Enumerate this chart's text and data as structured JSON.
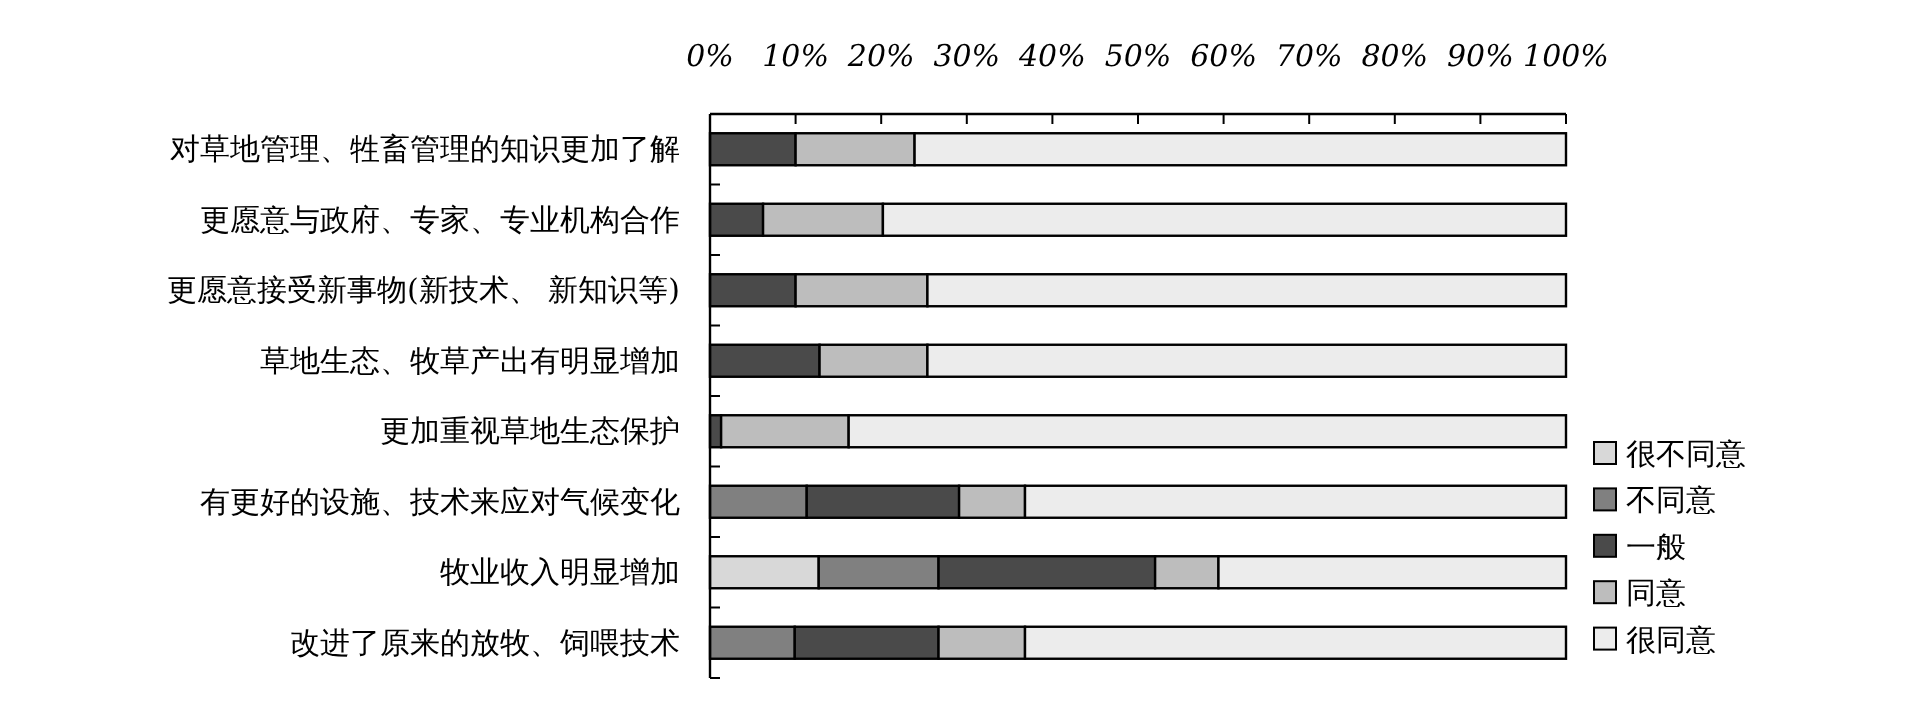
{
  "chart_data": {
    "type": "bar",
    "orientation": "horizontal",
    "stacked": true,
    "legend": "right",
    "grid": false,
    "categories": [
      "对草地管理、牲畜管理的知识更加了解",
      "更愿意与政府、专家、专业机构合作",
      "更愿意接受新事物(新技术、 新知识等)",
      "草地生态、牧草产出有明显增加",
      "更加重视草地生态保护",
      "有更好的设施、技术来应对气候变化",
      "牧业收入明显增加",
      "改进了原来的放牧、饲喂技术"
    ],
    "xlim": [
      0,
      100
    ],
    "xticks": [
      {
        "value": 0,
        "label": "0%"
      },
      {
        "value": 10,
        "label": "10%"
      },
      {
        "value": 20,
        "label": "20%"
      },
      {
        "value": 30,
        "label": "30%"
      },
      {
        "value": 40,
        "label": "40%"
      },
      {
        "value": 50,
        "label": "50%"
      },
      {
        "value": 60,
        "label": "60%"
      },
      {
        "value": 70,
        "label": "70%"
      },
      {
        "value": 80,
        "label": "80%"
      },
      {
        "value": 90,
        "label": "90%"
      },
      {
        "value": 100,
        "label": "100%"
      }
    ],
    "series": [
      {
        "name": "很不同意",
        "color": "#d8d8d8",
        "values": [
          0,
          0,
          0,
          0,
          0,
          0,
          12.7,
          0
        ]
      },
      {
        "name": "不同意",
        "color": "#808080",
        "values": [
          0,
          0,
          0,
          0,
          0,
          11.3,
          14.0,
          9.9
        ]
      },
      {
        "name": "一般",
        "color": "#4a4a4a",
        "values": [
          10.0,
          6.2,
          10.0,
          12.8,
          1.3,
          17.8,
          25.3,
          16.8
        ]
      },
      {
        "name": "同意",
        "color": "#bdbdbd",
        "values": [
          13.9,
          14.0,
          15.4,
          12.6,
          14.9,
          7.7,
          7.4,
          10.1
        ]
      },
      {
        "name": "很同意",
        "color": "#ececec",
        "values": [
          76.1,
          79.8,
          74.6,
          74.6,
          83.8,
          63.2,
          40.6,
          63.2
        ]
      }
    ]
  }
}
